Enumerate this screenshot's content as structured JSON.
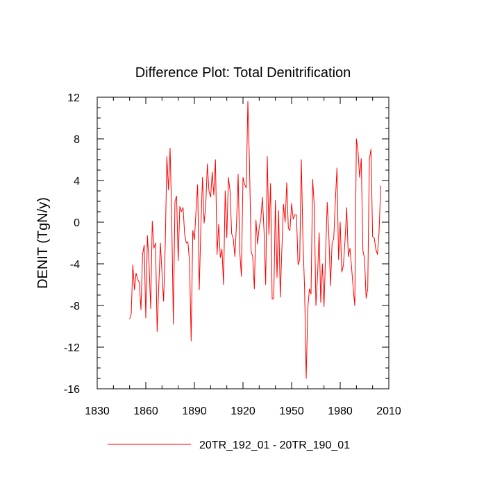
{
  "chart_data": {
    "type": "line",
    "title": "Difference Plot: Total Denitrification",
    "xlabel": "",
    "ylabel": "DENIT  (TgN/y)",
    "xlim": [
      1830,
      2010
    ],
    "ylim": [
      -16,
      12
    ],
    "xticks": [
      1830,
      1860,
      1890,
      1920,
      1950,
      1980,
      2010
    ],
    "yticks": [
      -16,
      -12,
      -8,
      -4,
      0,
      4,
      8,
      12
    ],
    "grid": false,
    "legend_position": "bottom-center",
    "series": [
      {
        "name": "20TR_192_01 - 20TR_190_01",
        "color": "#ff0000",
        "x": [
          1850,
          1851,
          1852,
          1853,
          1854,
          1855,
          1856,
          1857,
          1858,
          1859,
          1860,
          1861,
          1862,
          1863,
          1864,
          1865,
          1866,
          1867,
          1868,
          1869,
          1870,
          1871,
          1872,
          1873,
          1874,
          1875,
          1876,
          1877,
          1878,
          1879,
          1880,
          1881,
          1882,
          1883,
          1884,
          1885,
          1886,
          1887,
          1888,
          1889,
          1890,
          1891,
          1892,
          1893,
          1894,
          1895,
          1896,
          1897,
          1898,
          1899,
          1900,
          1901,
          1902,
          1903,
          1904,
          1905,
          1906,
          1907,
          1908,
          1909,
          1910,
          1911,
          1912,
          1913,
          1914,
          1915,
          1916,
          1917,
          1918,
          1919,
          1920,
          1921,
          1922,
          1923,
          1924,
          1925,
          1926,
          1927,
          1928,
          1929,
          1930,
          1931,
          1932,
          1933,
          1934,
          1935,
          1936,
          1937,
          1938,
          1939,
          1940,
          1941,
          1942,
          1943,
          1944,
          1945,
          1946,
          1947,
          1948,
          1949,
          1950,
          1951,
          1952,
          1953,
          1954,
          1955,
          1956,
          1957,
          1958,
          1959,
          1960,
          1961,
          1962,
          1963,
          1964,
          1965,
          1966,
          1967,
          1968,
          1969,
          1970,
          1971,
          1972,
          1973,
          1974,
          1975,
          1976,
          1977,
          1978,
          1979,
          1980,
          1981,
          1982,
          1983,
          1984,
          1985,
          1986,
          1987,
          1988,
          1989,
          1990,
          1991,
          1992,
          1993,
          1994,
          1995,
          1996,
          1997,
          1998,
          1999,
          2000,
          2001,
          2002,
          2003,
          2004,
          2005
        ],
        "values": [
          -9.3,
          -8.8,
          -4.1,
          -6.5,
          -4.9,
          -5.5,
          -5.8,
          -8.4,
          -3.1,
          -2.2,
          -9.2,
          -1.3,
          -4.0,
          -8.3,
          0.1,
          -2.5,
          -2.0,
          -10.5,
          -6.2,
          -2.0,
          -4.9,
          -7.6,
          -2.2,
          6.3,
          3.1,
          7.1,
          0.5,
          -9.8,
          2.0,
          2.5,
          -3.7,
          1.5,
          1.0,
          1.4,
          -1.2,
          -2.0,
          -1.9,
          -3.8,
          -11.4,
          -0.8,
          -1.7,
          1.1,
          3.6,
          -6.5,
          -0.4,
          4.3,
          -0.1,
          1.6,
          5.6,
          3.0,
          2.4,
          4.8,
          2.6,
          6.0,
          -3.1,
          -0.2,
          -3.4,
          -2.6,
          -6.0,
          3.0,
          -1.5,
          4.3,
          3.0,
          -1.1,
          -1.6,
          -3.3,
          -0.1,
          4.6,
          -2.8,
          -5.2,
          4.3,
          3.6,
          3.3,
          11.6,
          5.7,
          -2.8,
          -3.3,
          -6.4,
          0.2,
          -2.1,
          -0.5,
          0.3,
          2.4,
          -0.9,
          -6.0,
          6.3,
          -1.2,
          3.7,
          -7.4,
          -7.3,
          2.1,
          -5.3,
          1.1,
          -7.2,
          -2.6,
          1.7,
          0.0,
          3.8,
          -0.6,
          -0.8,
          1.8,
          0.3,
          0.7,
          0.7,
          -4.1,
          -3.6,
          6.0,
          -1.7,
          -6.3,
          -15.0,
          -8.3,
          -6.4,
          -6.9,
          4.1,
          1.6,
          -8.0,
          -5.2,
          -1.0,
          -7.7,
          -4.0,
          -8.1,
          -3.0,
          1.9,
          -1.3,
          -6.1,
          -2.0,
          -1.6,
          2.0,
          5.2,
          -3.6,
          0.0,
          -4.8,
          -4.1,
          -1.7,
          1.4,
          -3.3,
          -2.5,
          -4.3,
          -6.3,
          -8.0,
          8.0,
          6.8,
          4.3,
          6.1,
          -2.7,
          -3.5,
          -7.3,
          -6.4,
          6.0,
          7.0,
          -1.4,
          -1.5,
          -2.6,
          -3.1,
          -0.9,
          3.5
        ]
      }
    ]
  }
}
